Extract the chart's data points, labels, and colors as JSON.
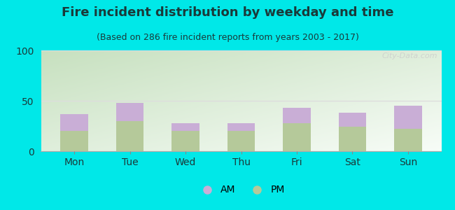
{
  "title": "Fire incident distribution by weekday and time",
  "subtitle": "(Based on 286 fire incident reports from years 2003 - 2017)",
  "categories": [
    "Mon",
    "Tue",
    "Wed",
    "Thu",
    "Fri",
    "Sat",
    "Sun"
  ],
  "pm_values": [
    20,
    30,
    20,
    20,
    28,
    24,
    22
  ],
  "am_values": [
    17,
    18,
    8,
    8,
    15,
    14,
    23
  ],
  "am_color": "#c9aed6",
  "pm_color": "#b5c99a",
  "background_color": "#00e8e8",
  "ylim": [
    0,
    100
  ],
  "yticks": [
    0,
    50,
    100
  ],
  "bar_width": 0.5,
  "title_fontsize": 13,
  "subtitle_fontsize": 9,
  "tick_fontsize": 10,
  "legend_fontsize": 10,
  "title_color": "#1a3a3a",
  "subtitle_color": "#1a3a3a",
  "watermark_text": "⌕ City-Data.com",
  "plot_bg_colors": [
    "#c8dfc0",
    "#f0f5ee",
    "#f8faf8"
  ],
  "grid_color": "#dddddd"
}
